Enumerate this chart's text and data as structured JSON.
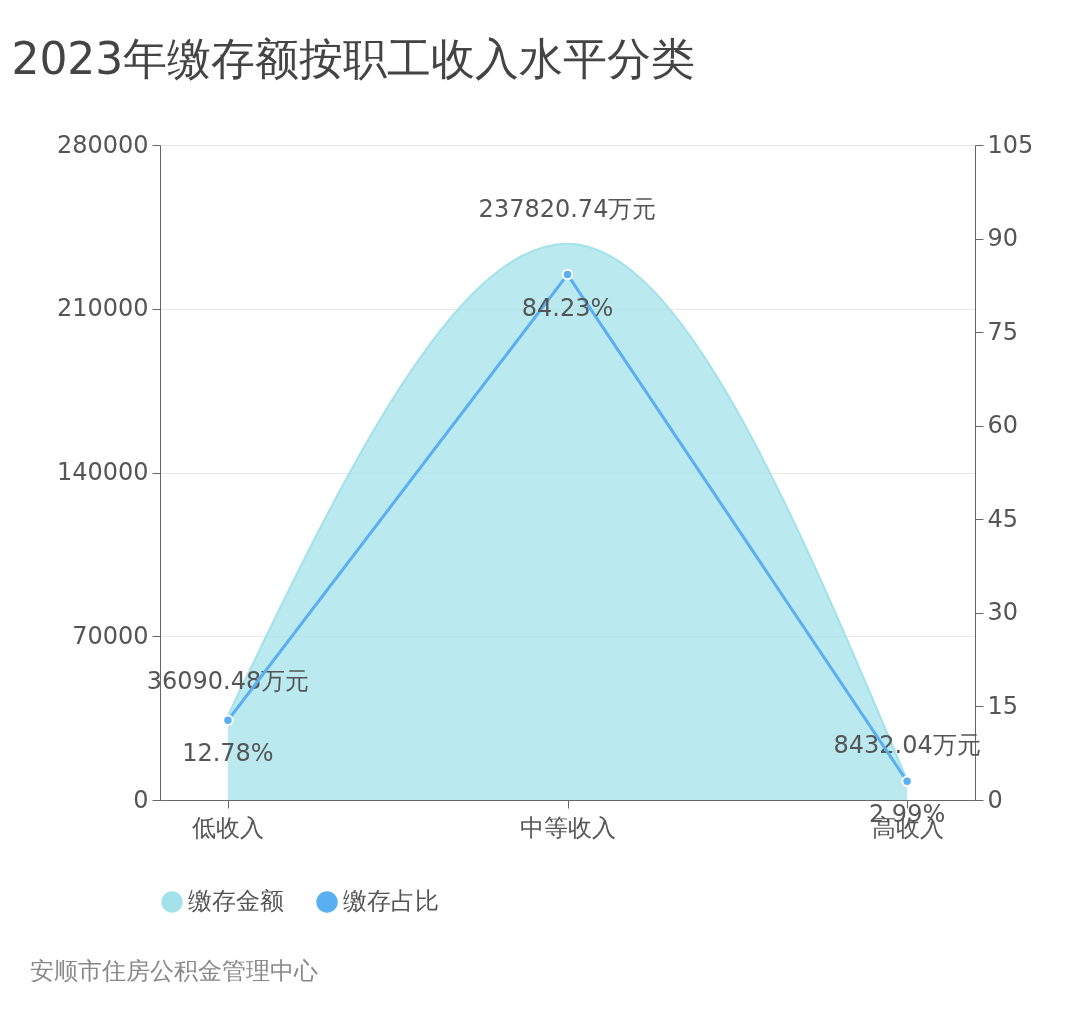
{
  "chart_data": {
    "type": "area",
    "title": "2023年缴存额按职工收入水平分类",
    "categories": [
      "低收入",
      "中等收入",
      "高收入"
    ],
    "series": [
      {
        "name": "缴存金额",
        "color": "#a3e2ea",
        "values": [
          36090.48,
          237820.74,
          8432.04
        ],
        "value_labels": [
          "36090.48万元",
          "237820.74万元",
          "8432.04万元"
        ]
      },
      {
        "name": "缴存占比",
        "type": "line",
        "axis": "y2",
        "color": "#5aaef2",
        "marker": "circle",
        "values": [
          12.78,
          84.23,
          2.99
        ],
        "value_labels": [
          "12.78%",
          "84.23%",
          "2.99%"
        ]
      }
    ],
    "ylim": [
      0,
      280000
    ],
    "yticks": [
      0,
      70000,
      140000,
      210000,
      280000
    ],
    "y2lim": [
      0,
      105
    ],
    "y2ticks": [
      0,
      15,
      30,
      45,
      60,
      75,
      90,
      105
    ],
    "grid": "y",
    "legend": "bottom",
    "annotations": [
      "安顺市住房公积金管理中心"
    ]
  }
}
